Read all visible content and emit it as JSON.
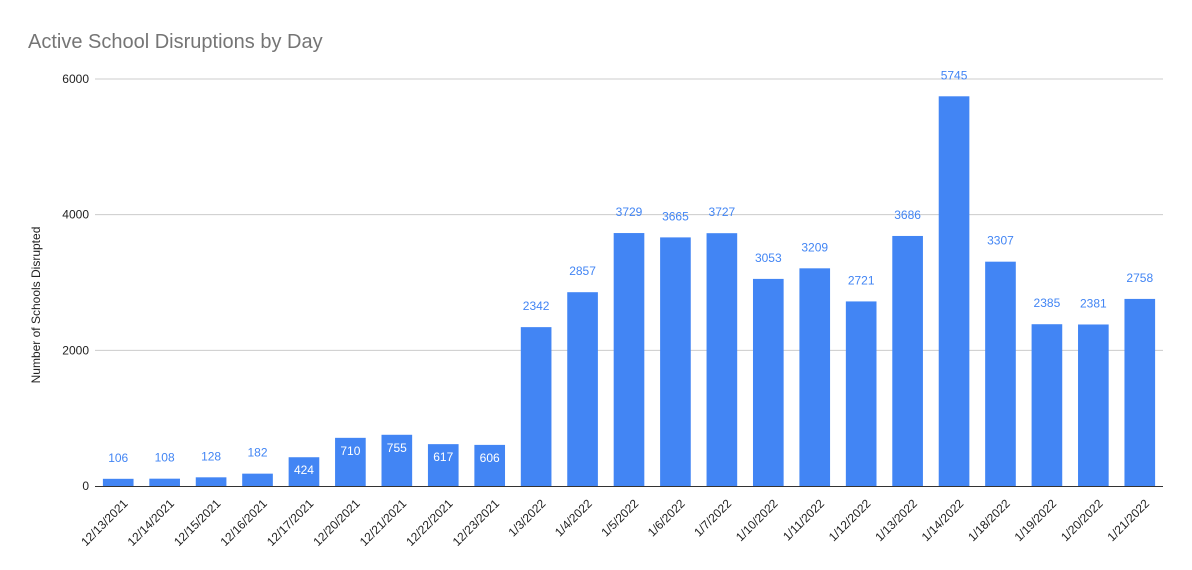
{
  "chart_data": {
    "type": "bar",
    "title": "Active School Disruptions by Day",
    "xlabel": "",
    "ylabel": "Number of Schools Disrupted",
    "ylim": [
      0,
      6000
    ],
    "yticks": [
      0,
      2000,
      4000,
      6000
    ],
    "grid": true,
    "legend": "none",
    "colors": {
      "bar": "#4285f4",
      "label_outside": "#4285f4",
      "label_inside": "#ffffff",
      "grid": "#cccccc",
      "axis": "#333333"
    },
    "categories": [
      "12/13/2021",
      "12/14/2021",
      "12/15/2021",
      "12/16/2021",
      "12/17/2021",
      "12/20/2021",
      "12/21/2021",
      "12/22/2021",
      "12/23/2021",
      "1/3/2022",
      "1/4/2022",
      "1/5/2022",
      "1/6/2022",
      "1/7/2022",
      "1/10/2022",
      "1/11/2022",
      "1/12/2022",
      "1/13/2022",
      "1/14/2022",
      "1/18/2022",
      "1/19/2022",
      "1/20/2022",
      "1/21/2022"
    ],
    "values": [
      106,
      108,
      128,
      182,
      424,
      710,
      755,
      617,
      606,
      2342,
      2857,
      3729,
      3665,
      3727,
      3053,
      3209,
      2721,
      3686,
      5745,
      3307,
      2385,
      2381,
      2758
    ],
    "labels_inside_bar": [
      false,
      false,
      false,
      false,
      true,
      true,
      true,
      true,
      true,
      false,
      false,
      false,
      false,
      false,
      false,
      false,
      false,
      false,
      false,
      false,
      false,
      false,
      false
    ]
  }
}
